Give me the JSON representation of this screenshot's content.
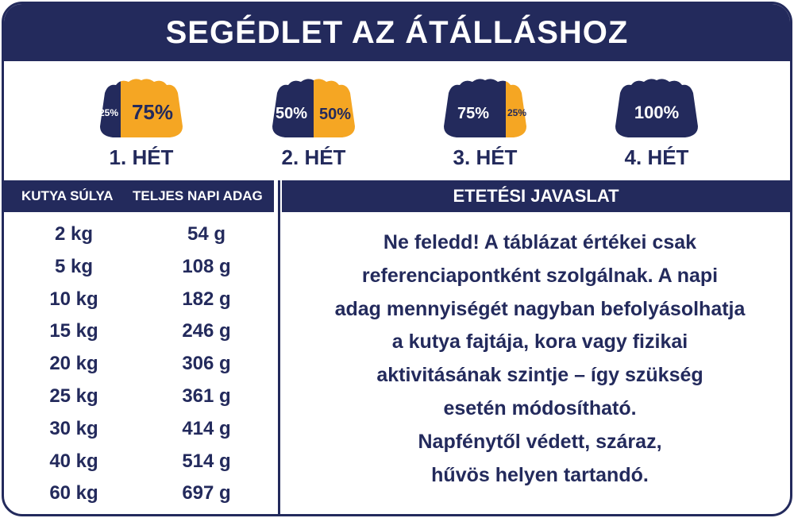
{
  "title": "SEGÉDLET AZ ÁTÁLLÁSHOZ",
  "colors": {
    "navy": "#232a5c",
    "orange": "#f5a623"
  },
  "weeks": [
    {
      "label": "1. HÉT",
      "navy_pct": "25%",
      "orange_pct": "75%",
      "navy_fraction": 0.25
    },
    {
      "label": "2. HÉT",
      "navy_pct": "50%",
      "orange_pct": "50%",
      "navy_fraction": 0.5
    },
    {
      "label": "3. HÉT",
      "navy_pct": "75%",
      "orange_pct": "25%",
      "navy_fraction": 0.75
    },
    {
      "label": "4. HÉT",
      "navy_pct": "100%",
      "orange_pct": "",
      "navy_fraction": 1.0
    }
  ],
  "table": {
    "headers": [
      "KUTYA SÚLYA",
      "TELJES NAPI ADAG"
    ],
    "rows": [
      [
        "2 kg",
        "54 g"
      ],
      [
        "5 kg",
        "108 g"
      ],
      [
        "10 kg",
        "182 g"
      ],
      [
        "15 kg",
        "246 g"
      ],
      [
        "20 kg",
        "306 g"
      ],
      [
        "25 kg",
        "361 g"
      ],
      [
        "30 kg",
        "414 g"
      ],
      [
        "40 kg",
        "514 g"
      ],
      [
        "60 kg",
        "697 g"
      ]
    ]
  },
  "recommendation": {
    "header": "ETETÉSI JAVASLAT",
    "lines": [
      "Ne feledd! A táblázat értékei csak",
      "referenciapontként szolgálnak. A napi",
      "adag mennyiségét nagyban befolyásolhatja",
      "a kutya fajtája, kora vagy fizikai",
      "aktivitásának szintje – így szükség",
      "esetén módosítható.",
      "Napfénytől védett, száraz,",
      "hűvös helyen tartandó."
    ]
  }
}
